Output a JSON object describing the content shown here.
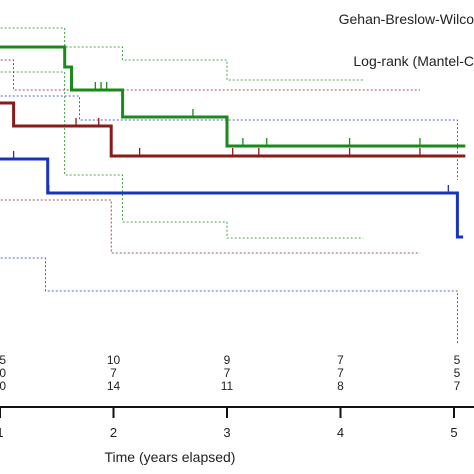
{
  "chart_data": {
    "type": "line",
    "title": "",
    "annotations": [
      "Gehan-Breslow-Wilco",
      "Log-rank (Mantel-C"
    ],
    "xlabel": "Time (years elapsed)",
    "ylabel": "",
    "xlim": [
      0.9,
      5.1
    ],
    "xticks": [
      {
        "value": 1,
        "label": "1"
      },
      {
        "value": 2,
        "label": "2"
      },
      {
        "value": 3,
        "label": "3"
      },
      {
        "value": 4,
        "label": "4"
      },
      {
        "value": 5,
        "label": "5"
      }
    ],
    "grid": false,
    "series": [
      {
        "color": "#1a8a1a",
        "steps": [
          [
            0.9,
            47
          ],
          [
            1.57,
            47
          ],
          [
            1.57,
            67
          ],
          [
            1.63,
            67
          ],
          [
            1.63,
            90
          ],
          [
            2.08,
            90
          ],
          [
            2.08,
            117
          ],
          [
            3.0,
            117
          ],
          [
            3.0,
            146
          ],
          [
            5.1,
            146
          ]
        ],
        "censors": [
          [
            0.97,
            47
          ],
          [
            1.84,
            90
          ],
          [
            1.89,
            90
          ],
          [
            1.94,
            90
          ],
          [
            2.7,
            117
          ],
          [
            3.14,
            146
          ],
          [
            3.35,
            146
          ],
          [
            4.08,
            146
          ],
          [
            4.7,
            146
          ]
        ],
        "ci_upper": [
          [
            0.9,
            28
          ],
          [
            1.57,
            28
          ],
          [
            1.57,
            47
          ],
          [
            2.08,
            47
          ],
          [
            2.08,
            60
          ],
          [
            3.0,
            60
          ],
          [
            3.0,
            80
          ],
          [
            4.2,
            80
          ]
        ],
        "ci_lower": [
          [
            0.9,
            72
          ],
          [
            1.57,
            72
          ],
          [
            1.57,
            175
          ],
          [
            2.08,
            175
          ],
          [
            2.08,
            222
          ],
          [
            3.0,
            222
          ],
          [
            3.0,
            238
          ],
          [
            4.2,
            238
          ]
        ]
      },
      {
        "color": "#8b1a1a",
        "steps": [
          [
            0.9,
            103
          ],
          [
            1.12,
            103
          ],
          [
            1.12,
            126
          ],
          [
            1.98,
            126
          ],
          [
            1.98,
            156
          ],
          [
            5.1,
            156
          ]
        ],
        "censors": [
          [
            1.67,
            126
          ],
          [
            1.87,
            126
          ],
          [
            2.23,
            156
          ],
          [
            3.05,
            156
          ],
          [
            3.28,
            156
          ],
          [
            4.08,
            156
          ],
          [
            4.7,
            156
          ]
        ],
        "ci_upper": [
          [
            0.9,
            60
          ],
          [
            1.12,
            60
          ],
          [
            1.12,
            90
          ],
          [
            1.98,
            90
          ],
          [
            1.98,
            90
          ],
          [
            4.7,
            90
          ]
        ],
        "ci_lower": [
          [
            0.9,
            200
          ],
          [
            1.98,
            200
          ],
          [
            1.98,
            253
          ],
          [
            4.7,
            253
          ]
        ]
      },
      {
        "color": "#1a33bb",
        "steps": [
          [
            0.9,
            159
          ],
          [
            1.42,
            159
          ],
          [
            1.42,
            193
          ],
          [
            5.03,
            193
          ],
          [
            5.03,
            237
          ],
          [
            5.08,
            237
          ]
        ],
        "censors": [
          [
            1.12,
            159
          ],
          [
            1.43,
            193
          ],
          [
            4.95,
            193
          ]
        ],
        "ci_upper": [
          [
            0.9,
            96
          ],
          [
            1.7,
            96
          ],
          [
            1.7,
            120
          ],
          [
            5.03,
            120
          ],
          [
            5.03,
            180
          ]
        ],
        "ci_lower": [
          [
            0.9,
            258
          ],
          [
            1.4,
            258
          ],
          [
            1.4,
            291
          ],
          [
            5.03,
            291
          ],
          [
            5.03,
            345
          ]
        ]
      }
    ],
    "risk_table": {
      "times": [
        1,
        2,
        3,
        4,
        5
      ],
      "rows": [
        [
          "5",
          "10",
          "9",
          "7",
          "5"
        ],
        [
          "0",
          "7",
          "7",
          "7",
          "5"
        ],
        [
          "0",
          "14",
          "11",
          "8",
          "7"
        ]
      ]
    },
    "colors": {
      "green": "#1a8a1a",
      "red": "#8b1a1a",
      "blue": "#1a33bb",
      "axis": "#111111"
    }
  }
}
